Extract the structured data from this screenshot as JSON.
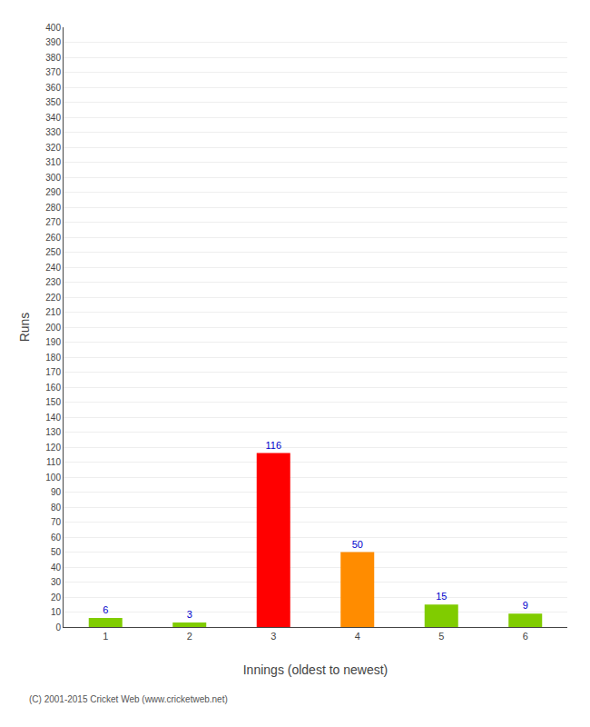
{
  "chart_data": {
    "type": "bar",
    "categories": [
      "1",
      "2",
      "3",
      "4",
      "5",
      "6"
    ],
    "values": [
      6,
      3,
      116,
      50,
      15,
      9
    ],
    "colors": [
      "#80cc00",
      "#80cc00",
      "#ff0000",
      "#ff8c00",
      "#80cc00",
      "#80cc00"
    ],
    "xlabel": "Innings (oldest to newest)",
    "ylabel": "Runs",
    "ylim": [
      0,
      400
    ],
    "yticks": [
      0,
      10,
      20,
      30,
      40,
      50,
      60,
      70,
      80,
      90,
      100,
      110,
      120,
      130,
      140,
      150,
      160,
      170,
      180,
      190,
      200,
      210,
      220,
      230,
      240,
      250,
      260,
      270,
      280,
      290,
      300,
      310,
      320,
      330,
      340,
      350,
      360,
      370,
      380,
      390,
      400
    ],
    "grid": true,
    "data_labels": true,
    "annotations": [
      "(C) 2001-2015 Cricket Web (www.cricketweb.net)"
    ]
  }
}
